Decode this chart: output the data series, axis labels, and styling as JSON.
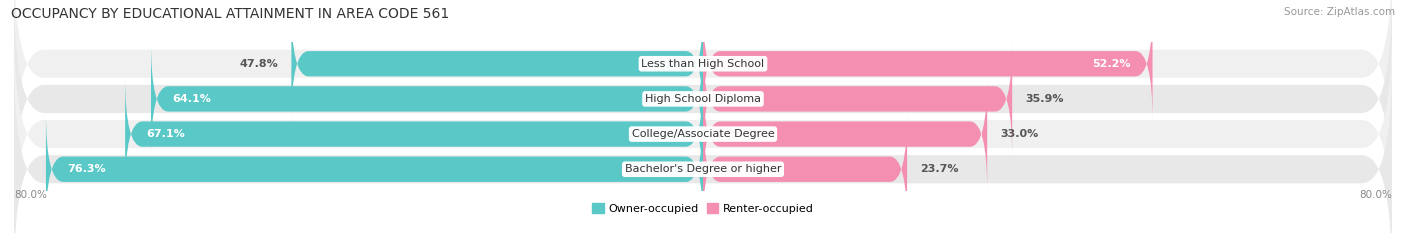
{
  "title": "OCCUPANCY BY EDUCATIONAL ATTAINMENT IN AREA CODE 561",
  "source": "Source: ZipAtlas.com",
  "categories": [
    "Less than High School",
    "High School Diploma",
    "College/Associate Degree",
    "Bachelor's Degree or higher"
  ],
  "owner_values": [
    47.8,
    64.1,
    67.1,
    76.3
  ],
  "renter_values": [
    52.2,
    35.9,
    33.0,
    23.7
  ],
  "owner_color": "#5BC8C8",
  "renter_color": "#F48FB1",
  "row_bg_light": "#F7F7F7",
  "row_bg_dark": "#EBEBEB",
  "xlim_left": -80.0,
  "xlim_right": 80.0,
  "x_left_label": "80.0%",
  "x_right_label": "80.0%",
  "owner_label": "Owner-occupied",
  "renter_label": "Renter-occupied",
  "title_fontsize": 10,
  "source_fontsize": 7.5,
  "bar_height": 0.72,
  "label_fontsize": 8,
  "cat_fontsize": 8
}
